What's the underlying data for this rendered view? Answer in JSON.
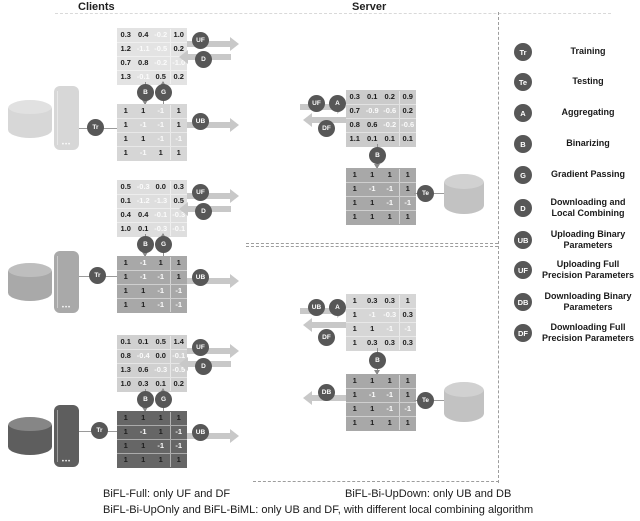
{
  "page": {
    "clients_title": "Clients",
    "server_title": "Server"
  },
  "badges": {
    "tr": "Tr",
    "te": "Te",
    "a": "A",
    "b": "B",
    "g": "G",
    "d": "D",
    "ub": "UB",
    "uf": "UF",
    "db": "DB",
    "df": "DF"
  },
  "clients": [
    {
      "full": [
        [
          "0.3",
          "0.4",
          "-0.2",
          "1.0"
        ],
        [
          "1.2",
          "-1.1",
          "-0.5",
          "0.2"
        ],
        [
          "0.7",
          "0.8",
          "-0.2",
          "-1.0"
        ],
        [
          "1.3",
          "-0.1",
          "0.5",
          "0.2"
        ]
      ],
      "binary": [
        [
          "1",
          "1",
          "-1",
          "1"
        ],
        [
          "1",
          "-1",
          "-1",
          "1"
        ],
        [
          "1",
          "1",
          "-1",
          "-1"
        ],
        [
          "1",
          "-1",
          "1",
          "1"
        ]
      ]
    },
    {
      "full": [
        [
          "0.5",
          "-0.3",
          "0.0",
          "0.3"
        ],
        [
          "0.1",
          "-1.2",
          "-1.3",
          "0.5"
        ],
        [
          "0.4",
          "0.4",
          "-0.1",
          "-0.3"
        ],
        [
          "1.0",
          "0.1",
          "-0.3",
          "-0.1"
        ]
      ],
      "binary": [
        [
          "1",
          "-1",
          "1",
          "1"
        ],
        [
          "1",
          "-1",
          "-1",
          "1"
        ],
        [
          "1",
          "1",
          "-1",
          "-1"
        ],
        [
          "1",
          "1",
          "-1",
          "-1"
        ]
      ]
    },
    {
      "full": [
        [
          "0.1",
          "0.1",
          "0.5",
          "1.4"
        ],
        [
          "0.8",
          "-0.4",
          "0.0",
          "-0.1"
        ],
        [
          "1.3",
          "0.6",
          "-0.3",
          "-0.5"
        ],
        [
          "1.0",
          "0.3",
          "0.1",
          "0.2"
        ]
      ],
      "binary": [
        [
          "1",
          "1",
          "1",
          "1"
        ],
        [
          "1",
          "-1",
          "1",
          "-1"
        ],
        [
          "1",
          "1",
          "-1",
          "-1"
        ],
        [
          "1",
          "1",
          "1",
          "1"
        ]
      ]
    }
  ],
  "server": {
    "top": {
      "full": [
        [
          "0.3",
          "0.1",
          "0.2",
          "0.9"
        ],
        [
          "0.7",
          "-0.9",
          "-0.6",
          "0.2"
        ],
        [
          "0.8",
          "0.6",
          "-0.2",
          "-0.6"
        ],
        [
          "1.1",
          "0.1",
          "0.1",
          "0.1"
        ]
      ],
      "binary": [
        [
          "1",
          "1",
          "1",
          "1"
        ],
        [
          "1",
          "-1",
          "-1",
          "1"
        ],
        [
          "1",
          "1",
          "-1",
          "-1"
        ],
        [
          "1",
          "1",
          "1",
          "1"
        ]
      ]
    },
    "bottom": {
      "aggregated": [
        [
          "1",
          "0.3",
          "0.3",
          "1"
        ],
        [
          "1",
          "-1",
          "-0.3",
          "0.3"
        ],
        [
          "1",
          "1",
          "-1",
          "-1"
        ],
        [
          "1",
          "0.3",
          "0.3",
          "0.3"
        ]
      ],
      "binary": [
        [
          "1",
          "1",
          "1",
          "1"
        ],
        [
          "1",
          "-1",
          "-1",
          "1"
        ],
        [
          "1",
          "1",
          "-1",
          "-1"
        ],
        [
          "1",
          "1",
          "1",
          "1"
        ]
      ]
    }
  },
  "legend": [
    {
      "badge": "Tr",
      "label": "Training"
    },
    {
      "badge": "Te",
      "label": "Testing"
    },
    {
      "badge": "A",
      "label": "Aggregating"
    },
    {
      "badge": "B",
      "label": "Binarizing"
    },
    {
      "badge": "G",
      "label": "Gradient Passing"
    },
    {
      "badge": "D",
      "label": "Downloading and Local Combining"
    },
    {
      "badge": "UB",
      "label": "Uploading Binary Parameters"
    },
    {
      "badge": "UF",
      "label": "Uploading Full Precision Parameters"
    },
    {
      "badge": "DB",
      "label": "Downloading Binary Parameters"
    },
    {
      "badge": "DF",
      "label": "Downloading Full Precision Parameters"
    }
  ],
  "captions": {
    "line1_left": "BiFL-Full: only UF and DF",
    "line1_right": "BiFL-Bi-UpDown: only UB and DB",
    "line2": "BiFL-Bi-UpOnly and BiFL-BiML: only UB and DF, with different local combining algorithm"
  },
  "colors": {
    "badge": "#575757",
    "arrow": "#c8c8c8",
    "client_shades": [
      "#d7d7d7",
      "#a9a9a9",
      "#5e5e5e"
    ],
    "server_shade": "#c2c2c2"
  }
}
